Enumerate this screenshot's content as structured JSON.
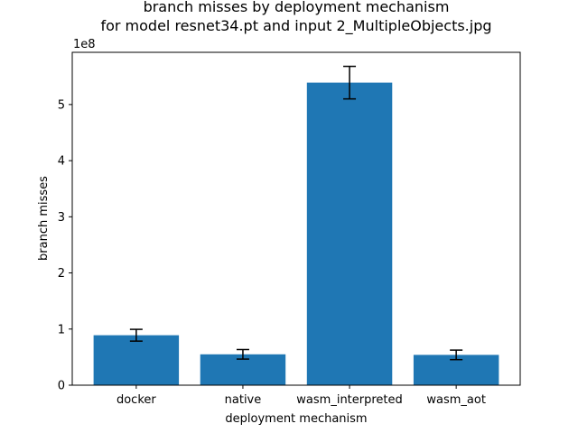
{
  "chart_data": {
    "type": "bar",
    "title_line1": "branch misses by deployment mechanism",
    "title_line2": "for model resnet34.pt and input 2_MultipleObjects.jpg",
    "xlabel": "deployment mechanism",
    "ylabel": "branch misses",
    "y_multiplier_label": "1e8",
    "y_scale": 100000000,
    "ylim": [
      0,
      5.93
    ],
    "yticks": [
      0,
      1,
      2,
      3,
      4,
      5
    ],
    "categories": [
      "docker",
      "native",
      "wasm_interpreted",
      "wasm_aot"
    ],
    "values": [
      0.89,
      0.55,
      5.39,
      0.54
    ],
    "errors": [
      0.105,
      0.085,
      0.29,
      0.085
    ],
    "bar_color": "#1f77b4",
    "grid": false
  }
}
